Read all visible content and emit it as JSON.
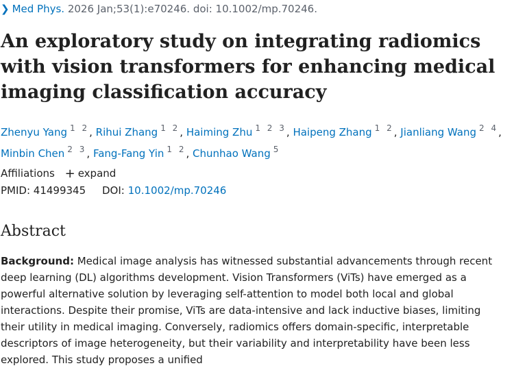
{
  "citation": {
    "journal": "Med Phys.",
    "details": "2026 Jan;53(1):e70246. doi: 10.1002/mp.70246."
  },
  "title": "An exploratory study on integrating radiomics with vision transformers for enhancing medical imaging classification accuracy",
  "authors": [
    {
      "name": "Zhenyu Yang",
      "aff": "1 2"
    },
    {
      "name": "Rihui Zhang",
      "aff": "1 2"
    },
    {
      "name": "Haiming Zhu",
      "aff": "1 2 3"
    },
    {
      "name": "Haipeng Zhang",
      "aff": "1 2"
    },
    {
      "name": "Jianliang Wang",
      "aff": "2 4"
    },
    {
      "name": "Minbin Chen",
      "aff": "2 3"
    },
    {
      "name": "Fang-Fang Yin",
      "aff": "1 2"
    },
    {
      "name": "Chunhao Wang",
      "aff": "5"
    }
  ],
  "affiliations": {
    "label": "Affiliations",
    "expand": "expand"
  },
  "ids": {
    "pmid_label": "PMID:",
    "pmid": "41499345",
    "doi_label": "DOI:",
    "doi": "10.1002/mp.70246"
  },
  "abstract": {
    "heading": "Abstract",
    "background_label": "Background:",
    "background_text": " Medical image analysis has witnessed substantial advancements through recent deep learning (DL) algorithms development. Vision Transformers (ViTs) have emerged as a powerful alternative solution by leveraging self-attention to model both local and global interactions. Despite their promise, ViTs are data-intensive and lack inductive biases, limiting their utility in medical imaging. Conversely, radiomics offers domain-specific, interpretable descriptors of image heterogeneity, but their variability and interpretability have been less explored. This study proposes a unified"
  }
}
